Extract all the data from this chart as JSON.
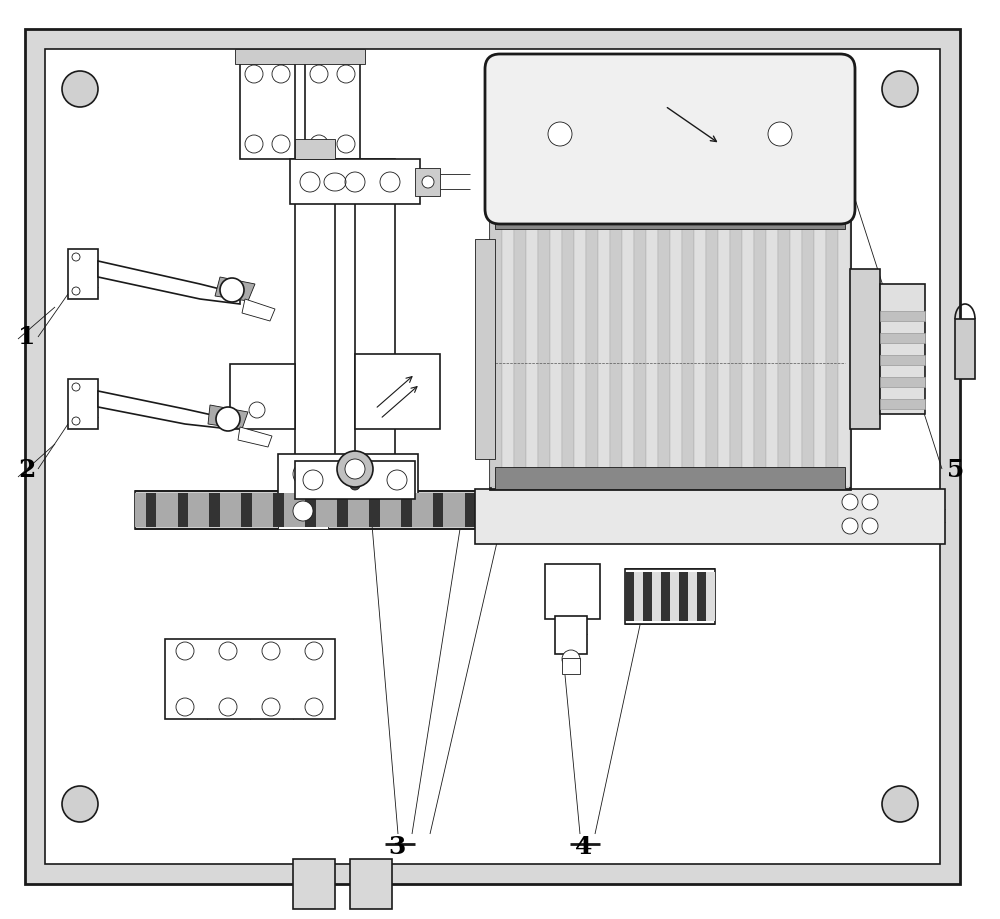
{
  "bg_color": "#ffffff",
  "panel_color": "#e0e0e0",
  "line_color": "#1a1a1a",
  "lw_border": 2.0,
  "lw_main": 1.2,
  "lw_thin": 0.6,
  "figsize": [
    10.0,
    9.19
  ],
  "dpi": 100
}
